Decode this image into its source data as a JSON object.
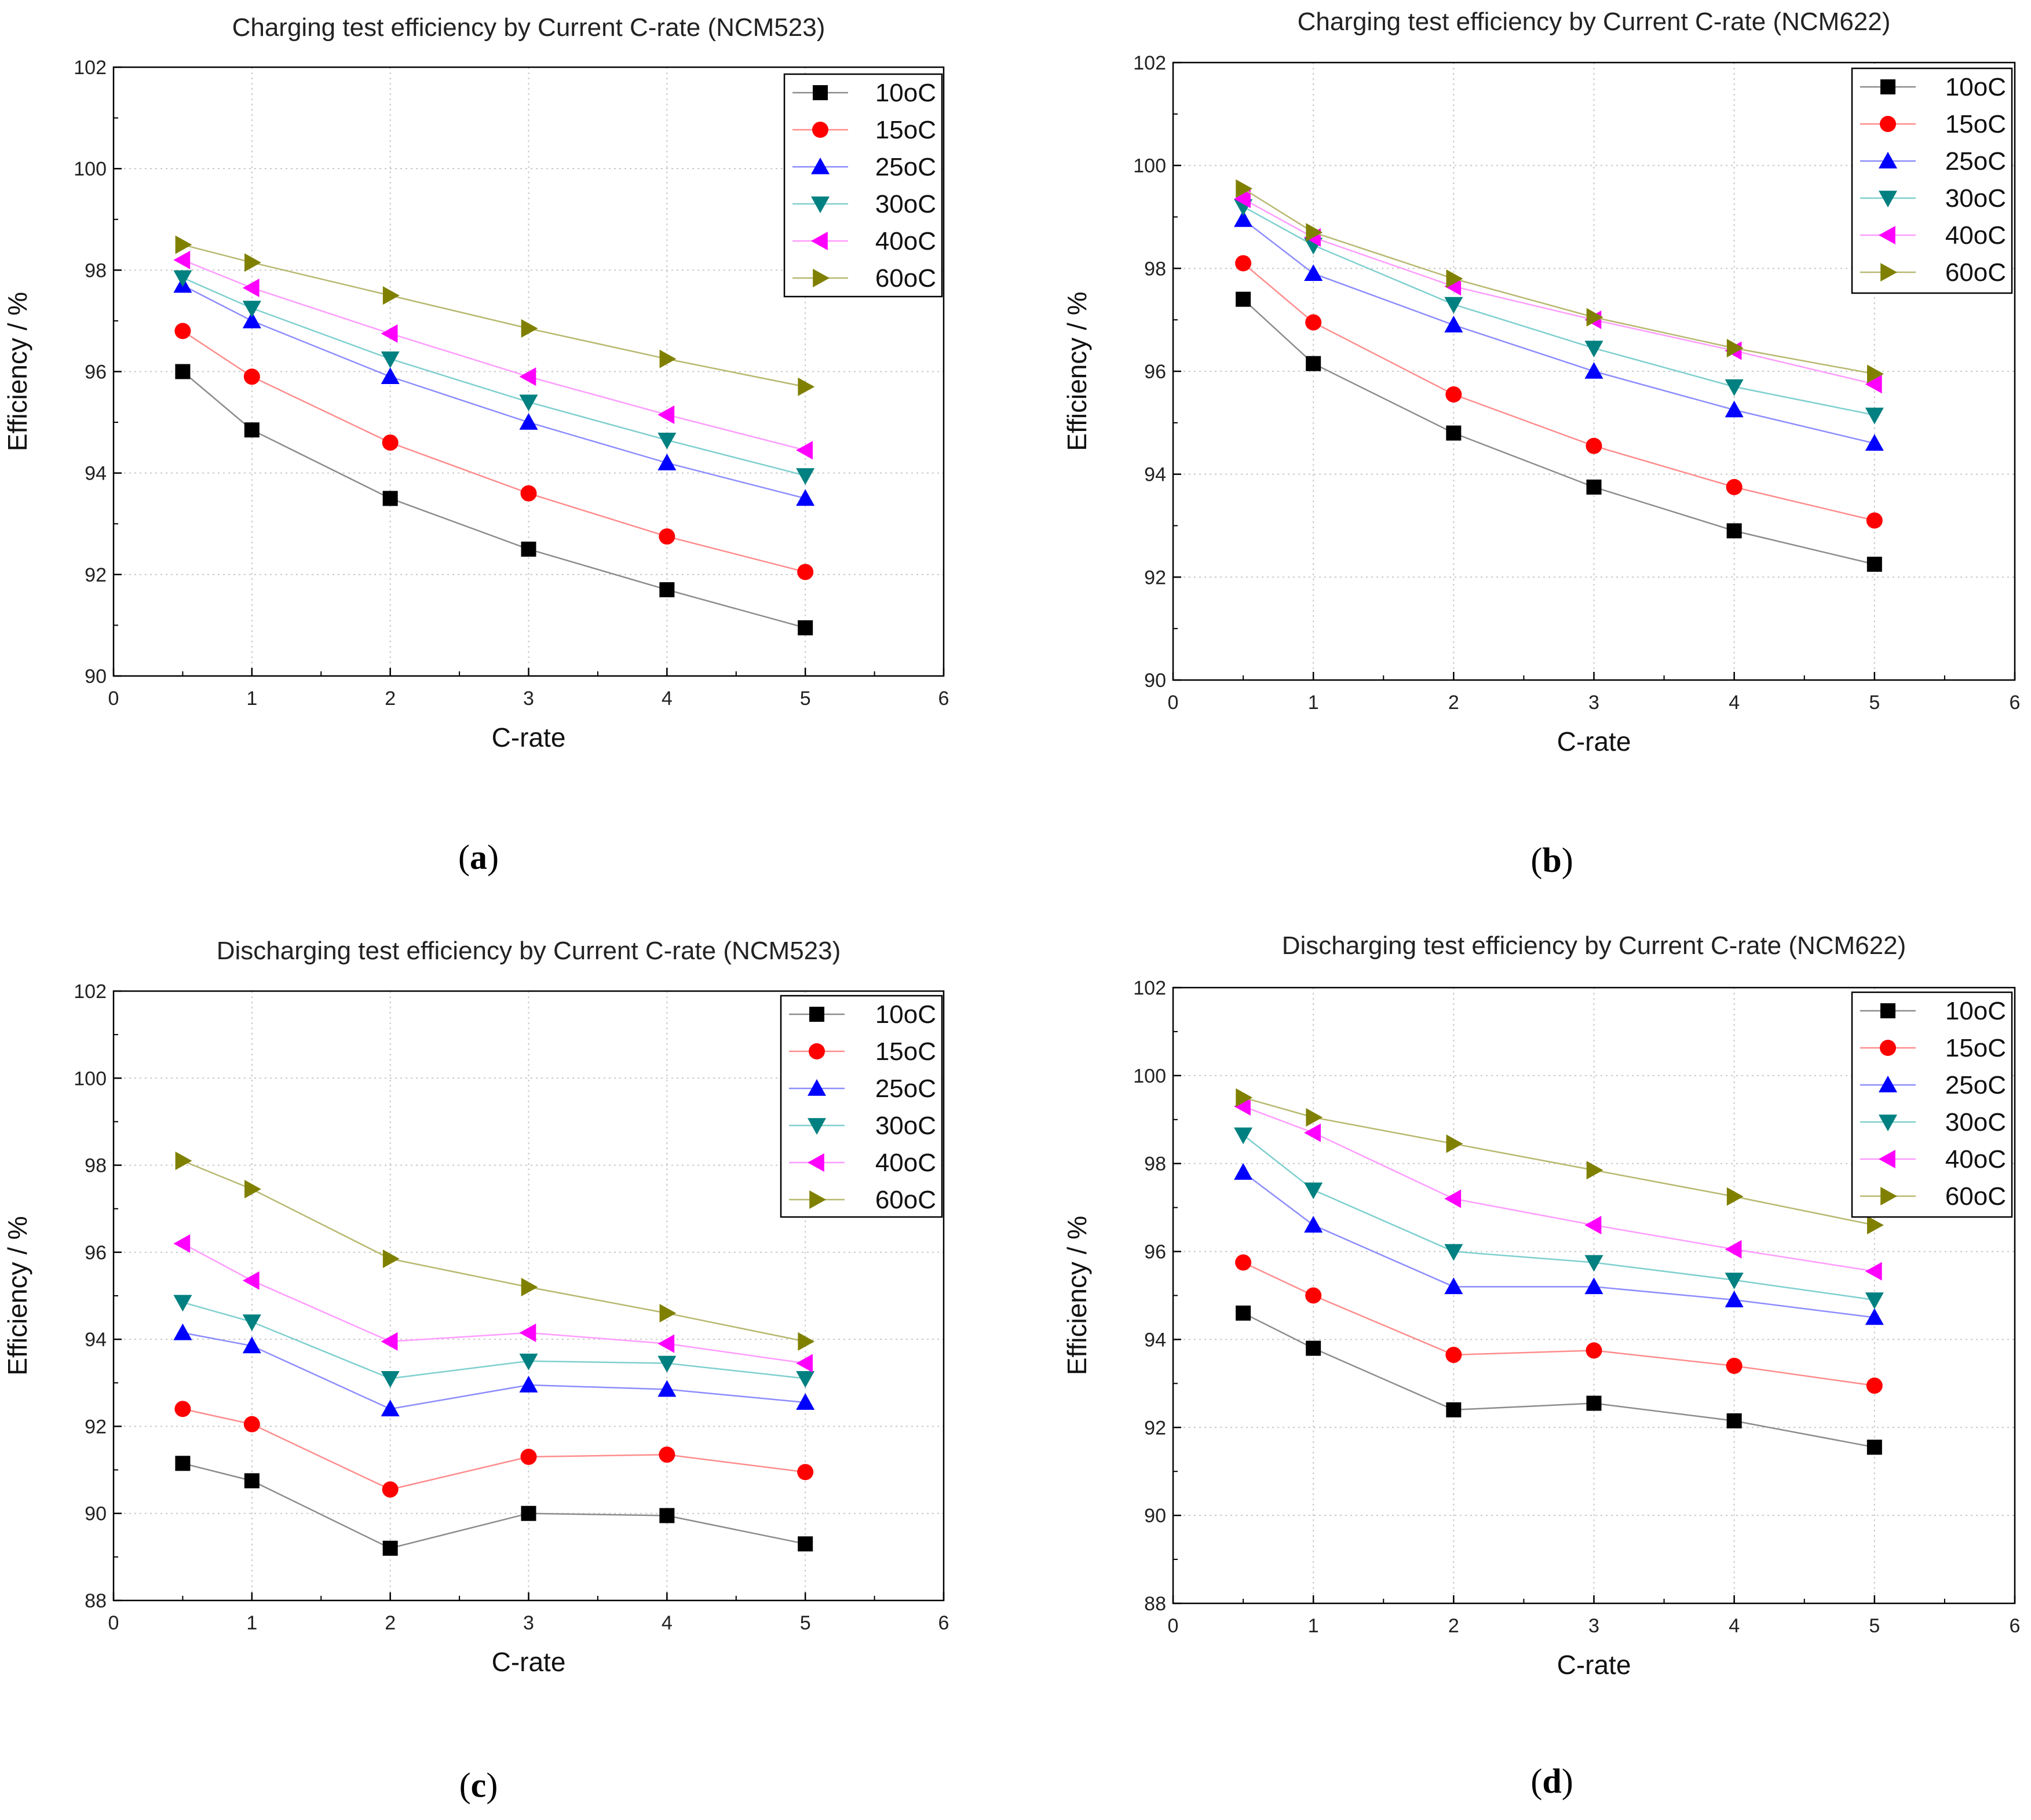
{
  "figure": {
    "series_colors": {
      "10oC": "#000000",
      "15oC": "#ff0000",
      "25oC": "#0000ff",
      "30oC": "#008080",
      "40oC": "#ff00ff",
      "60oC": "#808000"
    },
    "line_colors": {
      "10oC": "#8c8c8c",
      "15oC": "#ff8c8c",
      "25oC": "#8c8cff",
      "30oC": "#7fcfcf",
      "40oC": "#ff9cff",
      "60oC": "#b8b870"
    },
    "markers": {
      "10oC": "square",
      "15oC": "circle",
      "25oC": "triangle-up",
      "30oC": "triangle-down",
      "40oC": "triangle-left",
      "60oC": "triangle-right"
    }
  },
  "chart_data": [
    {
      "id": "a",
      "type": "line",
      "title": "Charging test efficiency by Current C-rate (NCM523)",
      "caption": "a",
      "xlabel": "C-rate",
      "ylabel": "Efficiency / %",
      "xlim": [
        0,
        6
      ],
      "ylim": [
        90,
        102
      ],
      "xticks": [
        "0",
        "1",
        "2",
        "3",
        "4",
        "5",
        "6"
      ],
      "yticks": [
        "90",
        "92",
        "94",
        "96",
        "98",
        "100",
        "102"
      ],
      "grid": true,
      "legend_position": "top-right",
      "x": [
        0.5,
        1,
        2,
        3,
        4,
        5
      ],
      "series": [
        {
          "name": "10oC",
          "values": [
            96.0,
            94.85,
            93.5,
            92.5,
            91.7,
            90.95
          ]
        },
        {
          "name": "15oC",
          "values": [
            96.8,
            95.9,
            94.6,
            93.6,
            92.75,
            92.05
          ]
        },
        {
          "name": "25oC",
          "values": [
            97.7,
            97.0,
            95.9,
            95.0,
            94.2,
            93.5
          ]
        },
        {
          "name": "30oC",
          "values": [
            97.85,
            97.25,
            96.25,
            95.4,
            94.65,
            93.95
          ]
        },
        {
          "name": "40oC",
          "values": [
            98.2,
            97.65,
            96.75,
            95.9,
            95.15,
            94.45
          ]
        },
        {
          "name": "60oC",
          "values": [
            98.5,
            98.15,
            97.5,
            96.85,
            96.25,
            95.7
          ]
        }
      ]
    },
    {
      "id": "b",
      "type": "line",
      "title": "Charging test efficiency by Current C-rate (NCM622)",
      "caption": "b",
      "xlabel": "C-rate",
      "ylabel": "Efficiency / %",
      "xlim": [
        0,
        6
      ],
      "ylim": [
        90,
        102
      ],
      "xticks": [
        "0",
        "1",
        "2",
        "3",
        "4",
        "5",
        "6"
      ],
      "yticks": [
        "90",
        "92",
        "94",
        "96",
        "98",
        "100",
        "102"
      ],
      "grid": true,
      "legend_position": "top-right",
      "x": [
        0.5,
        1,
        2,
        3,
        4,
        5
      ],
      "series": [
        {
          "name": "10oC",
          "values": [
            97.4,
            96.15,
            94.8,
            93.75,
            92.9,
            92.25
          ]
        },
        {
          "name": "15oC",
          "values": [
            98.1,
            96.95,
            95.55,
            94.55,
            93.75,
            93.1
          ]
        },
        {
          "name": "25oC",
          "values": [
            98.95,
            97.9,
            96.9,
            96.0,
            95.25,
            94.6
          ]
        },
        {
          "name": "30oC",
          "values": [
            99.2,
            98.45,
            97.3,
            96.45,
            95.7,
            95.15
          ]
        },
        {
          "name": "40oC",
          "values": [
            99.35,
            98.6,
            97.65,
            97.0,
            96.4,
            95.75
          ]
        },
        {
          "name": "60oC",
          "values": [
            99.55,
            98.7,
            97.8,
            97.05,
            96.45,
            95.95
          ]
        }
      ]
    },
    {
      "id": "c",
      "type": "line",
      "title": "Discharging test efficiency by Current C-rate (NCM523)",
      "caption": "c",
      "xlabel": "C-rate",
      "ylabel": "Efficiency / %",
      "xlim": [
        0,
        6
      ],
      "ylim": [
        88,
        102
      ],
      "xticks": [
        "0",
        "1",
        "2",
        "3",
        "4",
        "5",
        "6"
      ],
      "yticks": [
        "88",
        "90",
        "92",
        "94",
        "96",
        "98",
        "100",
        "102"
      ],
      "grid": true,
      "legend_position": "top-right",
      "x": [
        0.5,
        1,
        2,
        3,
        4,
        5
      ],
      "series": [
        {
          "name": "10oC",
          "values": [
            91.15,
            90.75,
            89.2,
            90.0,
            89.95,
            89.3
          ]
        },
        {
          "name": "15oC",
          "values": [
            92.4,
            92.05,
            90.55,
            91.3,
            91.35,
            90.95
          ]
        },
        {
          "name": "25oC",
          "values": [
            94.15,
            93.85,
            92.4,
            92.95,
            92.85,
            92.55
          ]
        },
        {
          "name": "30oC",
          "values": [
            94.85,
            94.4,
            93.1,
            93.5,
            93.45,
            93.1
          ]
        },
        {
          "name": "40oC",
          "values": [
            96.2,
            95.35,
            93.95,
            94.15,
            93.9,
            93.45
          ]
        },
        {
          "name": "60oC",
          "values": [
            98.1,
            97.45,
            95.85,
            95.2,
            94.6,
            93.95
          ]
        }
      ]
    },
    {
      "id": "d",
      "type": "line",
      "title": "Discharging test efficiency by Current C-rate (NCM622)",
      "caption": "d",
      "xlabel": "C-rate",
      "ylabel": "Efficiency / %",
      "xlim": [
        0,
        6
      ],
      "ylim": [
        88,
        102
      ],
      "xticks": [
        "0",
        "1",
        "2",
        "3",
        "4",
        "5",
        "6"
      ],
      "yticks": [
        "88",
        "90",
        "92",
        "94",
        "96",
        "98",
        "100",
        "102"
      ],
      "grid": true,
      "legend_position": "top-right",
      "x": [
        0.5,
        1,
        2,
        3,
        4,
        5
      ],
      "series": [
        {
          "name": "10oC",
          "values": [
            94.6,
            93.8,
            92.4,
            92.55,
            92.15,
            91.55
          ]
        },
        {
          "name": "15oC",
          "values": [
            95.75,
            95.0,
            93.65,
            93.75,
            93.4,
            92.95
          ]
        },
        {
          "name": "25oC",
          "values": [
            97.8,
            96.6,
            95.2,
            95.2,
            94.9,
            94.5
          ]
        },
        {
          "name": "30oC",
          "values": [
            98.65,
            97.4,
            96.0,
            95.75,
            95.35,
            94.9
          ]
        },
        {
          "name": "40oC",
          "values": [
            99.3,
            98.7,
            97.2,
            96.6,
            96.05,
            95.55
          ]
        },
        {
          "name": "60oC",
          "values": [
            99.5,
            99.05,
            98.45,
            97.85,
            97.25,
            96.6
          ]
        }
      ]
    }
  ]
}
